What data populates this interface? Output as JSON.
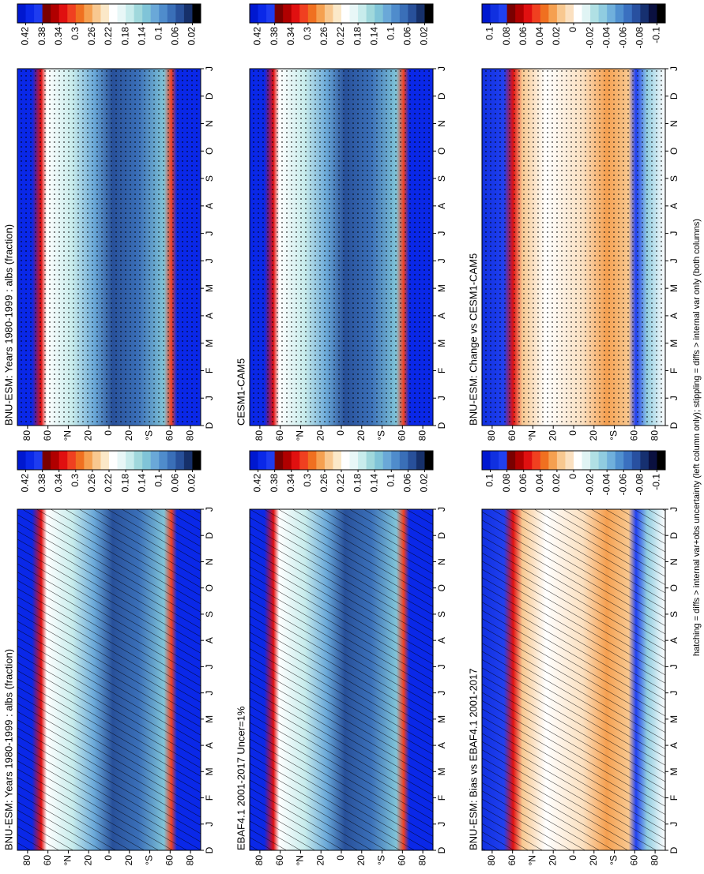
{
  "chart_data": [
    {
      "type": "contour",
      "title": "BNU-ESM: Years 1980-1999 : albs (fraction)",
      "overlay": "hatch",
      "yticks": [
        80,
        60,
        {
          "value": 40,
          "label": "°N"
        },
        20,
        0,
        {
          "value": -20,
          "label": "20"
        },
        {
          "value": -40,
          "label": "°S"
        },
        {
          "value": -60,
          "label": "60"
        },
        {
          "value": -80,
          "label": "80"
        }
      ],
      "ylim": [
        90,
        -90
      ],
      "categories": [
        "D",
        "J",
        "F",
        "M",
        "A",
        "M",
        "J",
        "J",
        "A",
        "S",
        "O",
        "N",
        "D",
        "J"
      ],
      "colorbar": {
        "clim": [
          0.44,
          0
        ],
        "ticks": [
          0.42,
          0.38,
          0.34,
          0.3,
          0.26,
          0.22,
          0.18,
          0.14,
          0.1,
          0.06,
          0.02
        ],
        "colors": [
          "#0018d0",
          "#0a28e8",
          "#1e3cf0",
          "#7a0000",
          "#b00000",
          "#e01010",
          "#f04020",
          "#f07020",
          "#f5a050",
          "#f8c890",
          "#fbe8c8",
          "#ffffff",
          "#e8f7f7",
          "#c8ecec",
          "#a0d8dc",
          "#80c4d8",
          "#6aa8d8",
          "#4f8ccc",
          "#3a6fb8",
          "#28509a",
          "#16306a",
          "#000000"
        ]
      }
    },
    {
      "type": "contour",
      "title": "BNU-ESM: Years 1980-1999 : albs (fraction)",
      "overlay": "stipple",
      "yticks": [
        80,
        60,
        {
          "value": 40,
          "label": "°N"
        },
        20,
        0,
        {
          "value": -20,
          "label": "20"
        },
        {
          "value": -40,
          "label": "°S"
        },
        {
          "value": -60,
          "label": "60"
        },
        {
          "value": -80,
          "label": "80"
        }
      ],
      "ylim": [
        90,
        -90
      ],
      "categories": [
        "D",
        "J",
        "F",
        "M",
        "A",
        "M",
        "J",
        "J",
        "A",
        "S",
        "O",
        "N",
        "D",
        "J"
      ],
      "colorbar": {
        "clim": [
          0.44,
          0
        ],
        "ticks": [
          0.42,
          0.38,
          0.34,
          0.3,
          0.26,
          0.22,
          0.18,
          0.14,
          0.1,
          0.06,
          0.02
        ],
        "colors": [
          "#0018d0",
          "#0a28e8",
          "#1e3cf0",
          "#7a0000",
          "#b00000",
          "#e01010",
          "#f04020",
          "#f07020",
          "#f5a050",
          "#f8c890",
          "#fbe8c8",
          "#ffffff",
          "#e8f7f7",
          "#c8ecec",
          "#a0d8dc",
          "#80c4d8",
          "#6aa8d8",
          "#4f8ccc",
          "#3a6fb8",
          "#28509a",
          "#16306a",
          "#000000"
        ]
      }
    },
    {
      "type": "contour",
      "title": "EBAF4.1 2001-2017 Uncer=1%",
      "overlay": "hatch",
      "yticks": [
        80,
        60,
        {
          "value": 40,
          "label": "°N"
        },
        20,
        0,
        {
          "value": -20,
          "label": "20"
        },
        {
          "value": -40,
          "label": "°S"
        },
        {
          "value": -60,
          "label": "60"
        },
        {
          "value": -80,
          "label": "80"
        }
      ],
      "ylim": [
        90,
        -90
      ],
      "categories": [
        "D",
        "J",
        "F",
        "M",
        "A",
        "M",
        "J",
        "J",
        "A",
        "S",
        "O",
        "N",
        "D",
        "J"
      ],
      "colorbar": {
        "clim": [
          0.44,
          0
        ],
        "ticks": [
          0.42,
          0.38,
          0.34,
          0.3,
          0.26,
          0.22,
          0.18,
          0.14,
          0.1,
          0.06,
          0.02
        ],
        "colors": [
          "#0018d0",
          "#0a28e8",
          "#1e3cf0",
          "#7a0000",
          "#b00000",
          "#e01010",
          "#f04020",
          "#f07020",
          "#f5a050",
          "#f8c890",
          "#fbe8c8",
          "#ffffff",
          "#e8f7f7",
          "#c8ecec",
          "#a0d8dc",
          "#80c4d8",
          "#6aa8d8",
          "#4f8ccc",
          "#3a6fb8",
          "#28509a",
          "#16306a",
          "#000000"
        ]
      }
    },
    {
      "type": "contour",
      "title": "CESM1-CAM5",
      "overlay": "stipple",
      "yticks": [
        80,
        60,
        {
          "value": 40,
          "label": "°N"
        },
        20,
        0,
        {
          "value": -20,
          "label": "20"
        },
        {
          "value": -40,
          "label": "°S"
        },
        {
          "value": -60,
          "label": "60"
        },
        {
          "value": -80,
          "label": "80"
        }
      ],
      "ylim": [
        90,
        -90
      ],
      "categories": [
        "D",
        "J",
        "F",
        "M",
        "A",
        "M",
        "J",
        "J",
        "A",
        "S",
        "O",
        "N",
        "D",
        "J"
      ],
      "colorbar": {
        "clim": [
          0.44,
          0
        ],
        "ticks": [
          0.42,
          0.38,
          0.34,
          0.3,
          0.26,
          0.22,
          0.18,
          0.14,
          0.1,
          0.06,
          0.02
        ],
        "colors": [
          "#0018d0",
          "#0a28e8",
          "#1e3cf0",
          "#7a0000",
          "#b00000",
          "#e01010",
          "#f04020",
          "#f07020",
          "#f5a050",
          "#f8c890",
          "#fbe8c8",
          "#ffffff",
          "#e8f7f7",
          "#c8ecec",
          "#a0d8dc",
          "#80c4d8",
          "#6aa8d8",
          "#4f8ccc",
          "#3a6fb8",
          "#28509a",
          "#16306a",
          "#000000"
        ]
      }
    },
    {
      "type": "contour",
      "title": "BNU-ESM: Bias vs EBAF4.1 2001-2017",
      "overlay": "hatch",
      "field": "diff",
      "yticks": [
        80,
        60,
        {
          "value": 40,
          "label": "°N"
        },
        20,
        0,
        {
          "value": -20,
          "label": "20"
        },
        {
          "value": -40,
          "label": "°S"
        },
        {
          "value": -60,
          "label": "60"
        },
        {
          "value": -80,
          "label": "80"
        }
      ],
      "ylim": [
        90,
        -90
      ],
      "categories": [
        "D",
        "J",
        "F",
        "M",
        "A",
        "M",
        "J",
        "J",
        "A",
        "S",
        "O",
        "N",
        "D",
        "J"
      ],
      "colorbar": {
        "clim": [
          0.11,
          -0.11
        ],
        "ticks": [
          0.1,
          0.08,
          0.06,
          0.04,
          0.02,
          0,
          -0.02,
          -0.04,
          -0.06,
          -0.08,
          -0.1
        ],
        "colors": [
          "#0018d0",
          "#1030e0",
          "#2040f0",
          "#7a0000",
          "#b00000",
          "#e01010",
          "#f04020",
          "#f07020",
          "#f5a050",
          "#f8c890",
          "#fbe0c0",
          "#ffffff",
          "#e0f4f4",
          "#b0e0e4",
          "#90cce0",
          "#70b0dc",
          "#5090d0",
          "#3a70c0",
          "#2850a0",
          "#163070",
          "#0a1040",
          "#000000"
        ]
      }
    },
    {
      "type": "contour",
      "title": "BNU-ESM: Change vs CESM1-CAM5",
      "overlay": "stipple",
      "field": "diff",
      "yticks": [
        80,
        60,
        {
          "value": 40,
          "label": "°N"
        },
        20,
        0,
        {
          "value": -20,
          "label": "20"
        },
        {
          "value": -40,
          "label": "°S"
        },
        {
          "value": -60,
          "label": "60"
        },
        {
          "value": -80,
          "label": "80"
        }
      ],
      "ylim": [
        90,
        -90
      ],
      "categories": [
        "D",
        "J",
        "F",
        "M",
        "A",
        "M",
        "J",
        "J",
        "A",
        "S",
        "O",
        "N",
        "D",
        "J"
      ],
      "colorbar": {
        "clim": [
          0.11,
          -0.11
        ],
        "ticks": [
          0.1,
          0.08,
          0.06,
          0.04,
          0.02,
          0,
          -0.02,
          -0.04,
          -0.06,
          -0.08,
          -0.1
        ],
        "colors": [
          "#0018d0",
          "#1030e0",
          "#2040f0",
          "#7a0000",
          "#b00000",
          "#e01010",
          "#f04020",
          "#f07020",
          "#f5a050",
          "#f8c890",
          "#fbe0c0",
          "#ffffff",
          "#e0f4f4",
          "#b0e0e4",
          "#90cce0",
          "#70b0dc",
          "#5090d0",
          "#3a70c0",
          "#2850a0",
          "#163070",
          "#0a1040",
          "#000000"
        ]
      }
    }
  ],
  "footnote": "hatching = diffs > internal var+obs uncertainty (left column only); stippling = diffs > internal var only (both columns)"
}
